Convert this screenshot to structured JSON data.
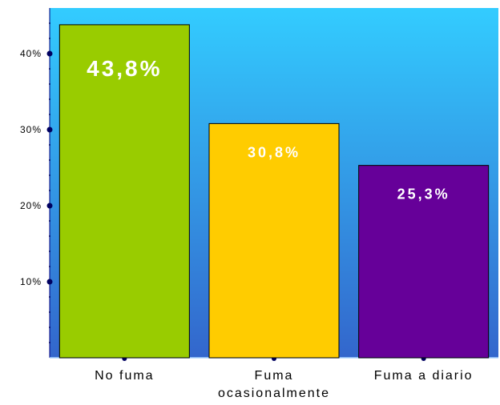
{
  "chart_data": {
    "type": "bar",
    "categories": [
      [
        "No fuma"
      ],
      [
        "Fuma",
        "ocasionalmente"
      ],
      [
        "Fuma a diario"
      ]
    ],
    "values": [
      43.8,
      30.8,
      25.3
    ],
    "data_labels": [
      "43,8%",
      "30,8%",
      "25,3%"
    ],
    "bar_colors": [
      "#99cc00",
      "#ffcc00",
      "#660099"
    ],
    "yticks": [
      10,
      20,
      30,
      40
    ],
    "ytick_labels": [
      "10%",
      "20%",
      "30%",
      "40%"
    ],
    "ylim": [
      0,
      46
    ],
    "grid": false,
    "background_gradient": [
      "#33ccff",
      "#3366cc"
    ]
  }
}
